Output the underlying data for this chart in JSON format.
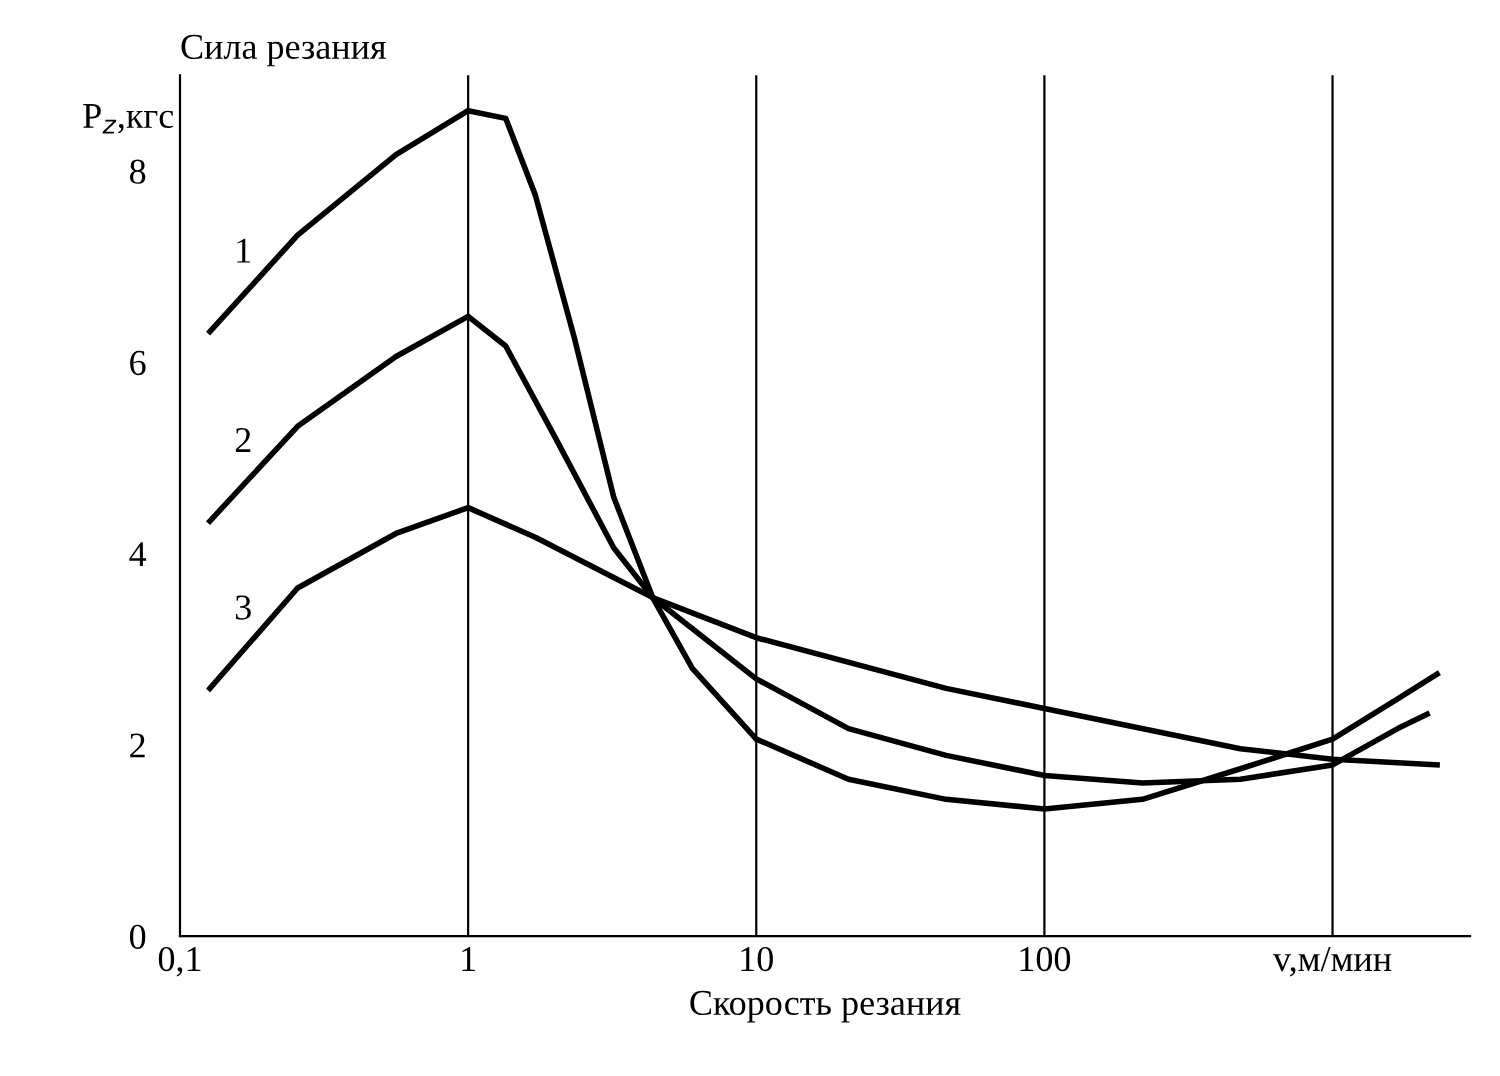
{
  "chart_data": {
    "type": "line",
    "title": "Сила резания",
    "ylabel": "P$_{z}$,кгс",
    "xlabel": "Скорость резания",
    "log": "x",
    "xlim": [
      0.1,
      3000
    ],
    "ylim": [
      0,
      9
    ],
    "xticks": [
      {
        "value": 0.1,
        "label": "0,1"
      },
      1,
      10,
      100,
      {
        "value": 1000,
        "label": "v,м/мин"
      }
    ],
    "yticks": [
      0,
      2,
      4,
      6,
      8
    ],
    "grid": false,
    "legend": false,
    "marker": "none",
    "line_style": "solid",
    "ref_lines": [
      {
        "axis": "x",
        "value": 1,
        "color": "#000000"
      },
      {
        "axis": "x",
        "value": 10,
        "color": "#000000"
      },
      {
        "axis": "x",
        "value": 100,
        "color": "#000000"
      },
      {
        "axis": "x",
        "value": 1000,
        "color": "#000000"
      }
    ],
    "series": [
      {
        "name": "1",
        "color": "#000000",
        "x": [
          0.127,
          0.256,
          0.562,
          1,
          1.35,
          1.71,
          2.33,
          3.2,
          4.37,
          6.0,
          10,
          20.9,
          45.6,
          100,
          219,
          479,
          1000,
          1683,
          2306
        ],
        "values": [
          6.32,
          7.33,
          8.17,
          8.63,
          8.55,
          7.75,
          6.27,
          4.59,
          3.54,
          2.8,
          2.06,
          1.64,
          1.43,
          1.33,
          1.43,
          1.75,
          2.06,
          2.48,
          2.74
        ]
      },
      {
        "name": "2",
        "color": "#000000",
        "x": [
          0.127,
          0.256,
          0.562,
          1,
          1.35,
          2.0,
          3.2,
          4.37,
          10,
          20.9,
          45.6,
          100,
          219,
          479,
          1000,
          1683,
          2130
        ],
        "values": [
          4.34,
          5.33,
          6.06,
          6.48,
          6.17,
          5.22,
          4.06,
          3.54,
          2.69,
          2.17,
          1.89,
          1.68,
          1.6,
          1.64,
          1.79,
          2.17,
          2.32
        ]
      },
      {
        "name": "3",
        "color": "#000000",
        "x": [
          0.127,
          0.256,
          0.562,
          1,
          1.71,
          3.2,
          4.37,
          10,
          45.6,
          100,
          479,
          1000,
          2306
        ],
        "values": [
          2.59,
          3.64,
          4.21,
          4.48,
          4.17,
          3.75,
          3.54,
          3.12,
          2.59,
          2.38,
          1.96,
          1.85,
          1.79
        ]
      }
    ]
  }
}
